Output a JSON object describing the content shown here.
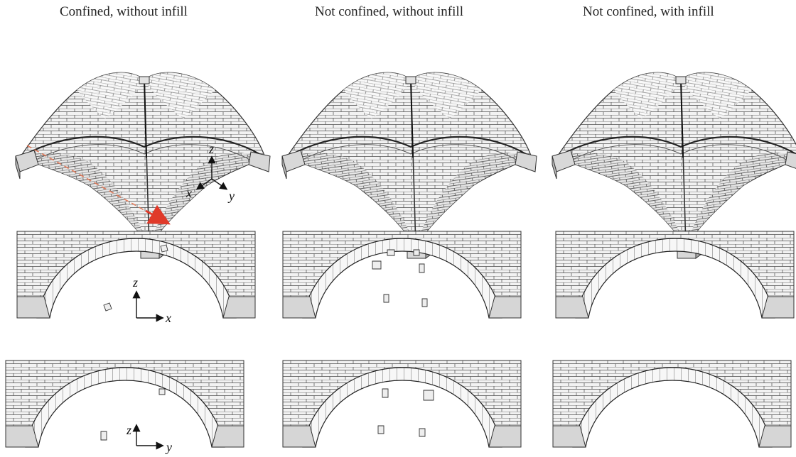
{
  "titles": [
    "Confined, without infill",
    "Not confined, without infill",
    "Not confined, with infill"
  ],
  "axes": {
    "iso": {
      "z": "z",
      "x": "x",
      "y": "y"
    },
    "front_x": {
      "z": "z",
      "h": "x"
    },
    "front_y": {
      "z": "z",
      "h": "y"
    }
  },
  "colors": {
    "brick_fill": "#f4f4f4",
    "brick_line": "#3a3a3a",
    "support": "#d8d8d8",
    "arrow": "#e03a2a",
    "dashed": "#e07a5a"
  }
}
